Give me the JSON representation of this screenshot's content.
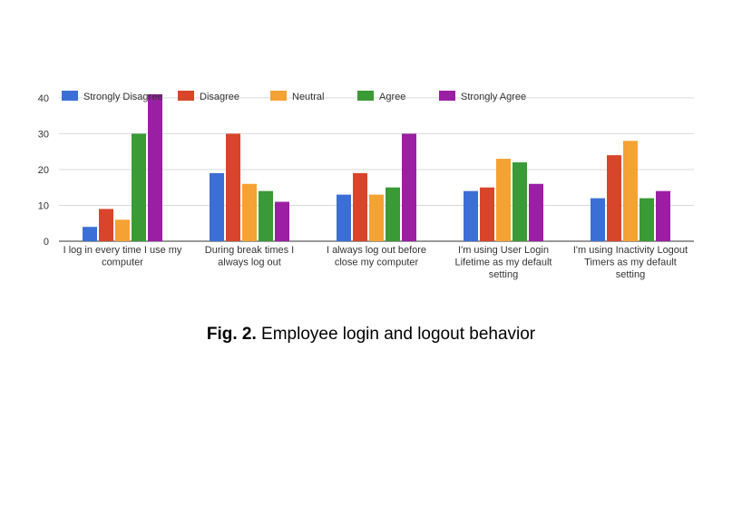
{
  "caption": {
    "label": "Fig. 2.",
    "text": "Employee login and logout behavior"
  },
  "chart_data": {
    "type": "bar",
    "categories": [
      [
        "I log in every time I use my",
        "computer"
      ],
      [
        "During break times I",
        "always log out"
      ],
      [
        "I always log out before",
        "close my computer"
      ],
      [
        "I'm using User Login",
        "Lifetime as my default",
        "setting"
      ],
      [
        "I'm using Inactivity Logout",
        "Timers as my default",
        "setting"
      ]
    ],
    "series": [
      {
        "name": "Strongly Disagree",
        "color": "#3c6fd6",
        "values": [
          4,
          19,
          13,
          14,
          12
        ]
      },
      {
        "name": "Disagree",
        "color": "#d8452a",
        "values": [
          9,
          30,
          19,
          15,
          24
        ]
      },
      {
        "name": "Neutral",
        "color": "#f4a233",
        "values": [
          6,
          16,
          13,
          23,
          28
        ]
      },
      {
        "name": "Agree",
        "color": "#3a9a35",
        "values": [
          30,
          14,
          15,
          22,
          12
        ]
      },
      {
        "name": "Strongly Agree",
        "color": "#9a1fa3",
        "values": [
          41,
          11,
          30,
          16,
          14
        ]
      }
    ],
    "yticks": [
      0,
      10,
      20,
      30,
      40
    ],
    "ylim": [
      0,
      42
    ],
    "grid": true,
    "legend_position": "top"
  }
}
